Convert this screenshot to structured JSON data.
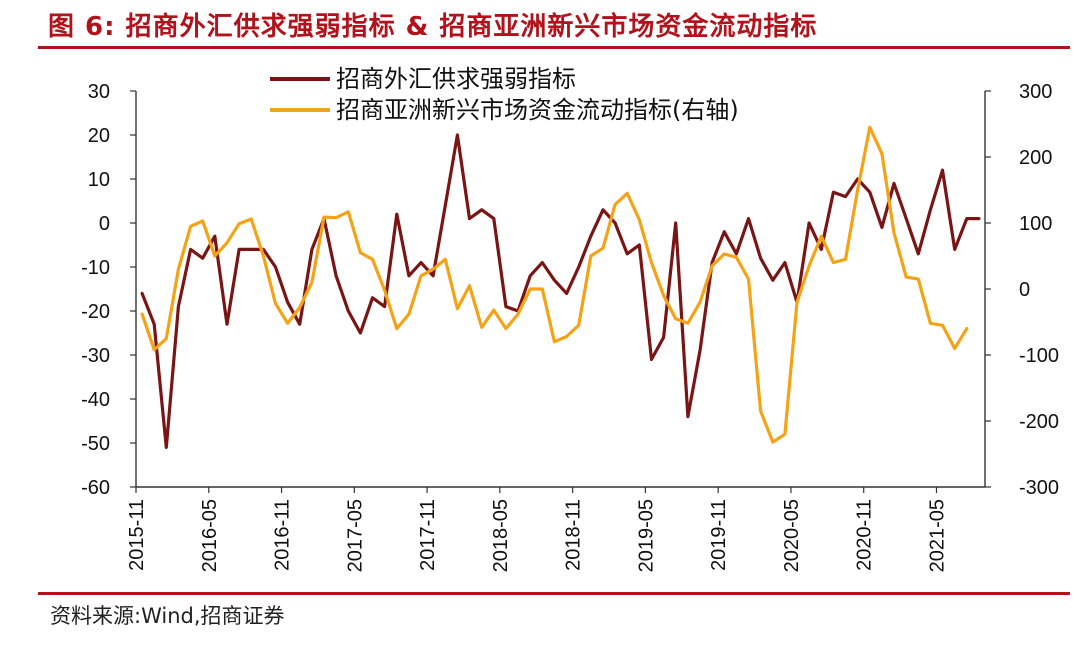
{
  "header": {
    "title": "图 6:  招商外汇供求强弱指标 & 招商亚洲新兴市场资金流动指标",
    "source": "资料来源:Wind,招商证券"
  },
  "chart_data": {
    "type": "line",
    "title": "招商外汇供求强弱指标 & 招商亚洲新兴市场资金流动指标",
    "legend_position": "top-center",
    "x_ticks": [
      "2015-11",
      "2016-05",
      "2016-11",
      "2017-05",
      "2017-11",
      "2018-05",
      "2018-11",
      "2019-05",
      "2019-11",
      "2020-05",
      "2020-11",
      "2021-05"
    ],
    "x_start": "2015-11",
    "left_axis": {
      "min": -60,
      "max": 30,
      "ticks": [
        "30",
        "20",
        "10",
        "0",
        "-10",
        "-20",
        "-30",
        "-40",
        "-50",
        "-60"
      ]
    },
    "right_axis": {
      "min": -300,
      "max": 300,
      "ticks": [
        "300",
        "200",
        "100",
        "0",
        "-100",
        "-200",
        "-300"
      ]
    },
    "series": [
      {
        "name": "招商外汇供求强弱指标",
        "axis": "left",
        "color": "#7a1515",
        "values": [
          -16,
          -23,
          -51,
          -19,
          -6,
          -8,
          -3,
          -23,
          -6,
          -6,
          -6,
          -10,
          -18,
          -23,
          -6,
          1,
          -12,
          -20,
          -25,
          -17,
          -19,
          2,
          -12,
          -9,
          -12,
          4,
          20,
          1,
          3,
          1,
          -19,
          -20,
          -12,
          -9,
          -13,
          -16,
          -10,
          -3,
          3,
          0,
          -7,
          -5,
          -31,
          -26,
          0,
          -44,
          -29,
          -9,
          -2,
          -7,
          1,
          -8,
          -13,
          -9,
          -18,
          0,
          -6,
          7,
          6,
          10,
          7,
          -1,
          9,
          1,
          -7,
          3,
          12,
          -6,
          1,
          1
        ],
        "last_date": "2021-08"
      },
      {
        "name": "招商亚洲新兴市场资金流动指标(右轴)",
        "axis": "right",
        "color": "#f5a316",
        "values": [
          -38,
          -92,
          -75,
          30,
          95,
          103,
          50,
          70,
          99,
          106,
          50,
          -22,
          -52,
          -28,
          10,
          109,
          108,
          117,
          55,
          45,
          -2,
          -60,
          -38,
          20,
          30,
          45,
          -30,
          5,
          -58,
          -32,
          -60,
          -38,
          0,
          0,
          -80,
          -72,
          -55,
          50,
          62,
          128,
          145,
          105,
          40,
          -10,
          -45,
          -52,
          -20,
          35,
          53,
          48,
          15,
          -185,
          -232,
          -220,
          -20,
          35,
          80,
          40,
          45,
          150,
          245,
          205,
          85,
          18,
          15,
          -52,
          -55,
          -90,
          -60
        ],
        "last_date": "2021-07"
      }
    ]
  }
}
